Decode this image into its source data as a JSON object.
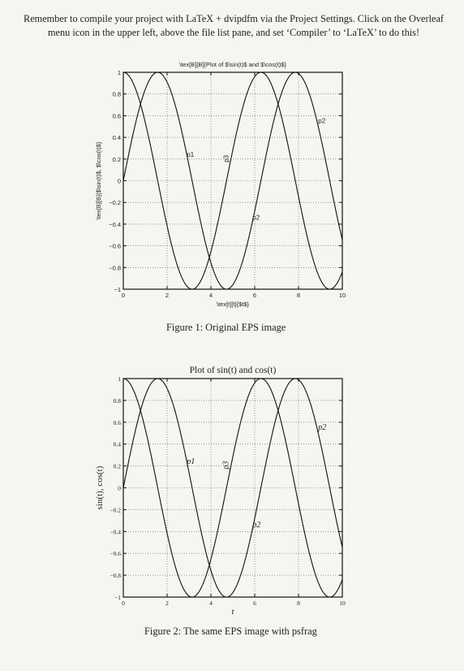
{
  "note": {
    "prefix": "Remember to compile your project with ",
    "latex_logo": "LaTeX",
    "suffix": " + dvipdfm via the Project Settings. Click on the Overleaf menu icon in the upper left, above the file list pane, and set ‘Compiler’ to ‘LaTeX’ to do this!"
  },
  "figure1": {
    "caption": "Figure 1: Original EPS image",
    "title": "\\tex[B][B]{Plot of $\\sin(t)$ and $\\cos(t)$}",
    "xlabel": "\\tex[t][t]{$t$}",
    "ylabel": "\\tex[B][B]{$\\sin(t)$, $\\cos(t)$}",
    "annotations": [
      "p1",
      "p2",
      "p3",
      "p2"
    ]
  },
  "figure2": {
    "caption": "Figure 2: The same EPS image with psfrag",
    "title": "Plot of sin(t) and cos(t)",
    "xlabel": "t",
    "ylabel": "sin(t), cos(t)",
    "annotations": [
      "p1",
      "p2",
      "p3",
      "p2"
    ]
  },
  "chart_data": [
    {
      "type": "line",
      "title": "\\tex[B][B]{Plot of $\\sin(t)$ and $\\cos(t)$}",
      "xlabel": "\\tex[t][t]{$t$}",
      "ylabel": "\\tex[B][B]{$\\sin(t)$, $\\cos(t)$}",
      "xlim": [
        0,
        10
      ],
      "ylim": [
        -1,
        1
      ],
      "xticks": [
        "0",
        "2",
        "4",
        "6",
        "8",
        "10"
      ],
      "yticks": [
        "-1",
        "-0.8",
        "-0.6",
        "-0.4",
        "-0.2",
        "0",
        "0.2",
        "0.4",
        "0.6",
        "0.8",
        "1"
      ],
      "grid": true,
      "series": [
        {
          "function": "sin",
          "x": [
            0,
            1,
            2,
            3,
            4,
            5,
            6,
            7,
            8,
            9,
            10
          ],
          "y": [
            0,
            0.84,
            0.91,
            0.14,
            -0.76,
            -0.96,
            -0.28,
            0.66,
            0.99,
            0.41,
            -0.54
          ]
        },
        {
          "function": "cos",
          "x": [
            0,
            1,
            2,
            3,
            4,
            5,
            6,
            7,
            8,
            9,
            10
          ],
          "y": [
            1,
            0.54,
            -0.42,
            -0.99,
            -0.65,
            0.28,
            0.96,
            0.75,
            -0.15,
            -0.91,
            -0.84
          ]
        }
      ],
      "annotations": [
        {
          "text": "p1",
          "x": 2.9,
          "y": 0.22
        },
        {
          "text": "p3",
          "x": 4.8,
          "y": 0.17
        },
        {
          "text": "p2",
          "x": 5.9,
          "y": -0.36
        },
        {
          "text": "p2",
          "x": 8.9,
          "y": 0.53
        }
      ]
    },
    {
      "type": "line",
      "title": "Plot of sin(t) and cos(t)",
      "xlabel": "t",
      "ylabel": "sin(t), cos(t)",
      "xlim": [
        0,
        10
      ],
      "ylim": [
        -1,
        1
      ],
      "xticks": [
        "0",
        "2",
        "4",
        "6",
        "8",
        "10"
      ],
      "yticks": [
        "-1",
        "-0.8",
        "-0.6",
        "-0.4",
        "-0.2",
        "0",
        "0.2",
        "0.4",
        "0.6",
        "0.8",
        "1"
      ],
      "grid": true,
      "series": [
        {
          "function": "sin",
          "x": [
            0,
            1,
            2,
            3,
            4,
            5,
            6,
            7,
            8,
            9,
            10
          ],
          "y": [
            0,
            0.84,
            0.91,
            0.14,
            -0.76,
            -0.96,
            -0.28,
            0.66,
            0.99,
            0.41,
            -0.54
          ]
        },
        {
          "function": "cos",
          "x": [
            0,
            1,
            2,
            3,
            4,
            5,
            6,
            7,
            8,
            9,
            10
          ],
          "y": [
            1,
            0.54,
            -0.42,
            -0.99,
            -0.65,
            0.28,
            0.96,
            0.75,
            -0.15,
            -0.91,
            -0.84
          ]
        }
      ],
      "annotations": [
        {
          "text": "p1",
          "x": 2.9,
          "y": 0.22
        },
        {
          "text": "p3",
          "x": 4.8,
          "y": 0.17
        },
        {
          "text": "p2",
          "x": 5.9,
          "y": -0.36
        },
        {
          "text": "p2",
          "x": 8.9,
          "y": 0.53
        }
      ]
    }
  ]
}
